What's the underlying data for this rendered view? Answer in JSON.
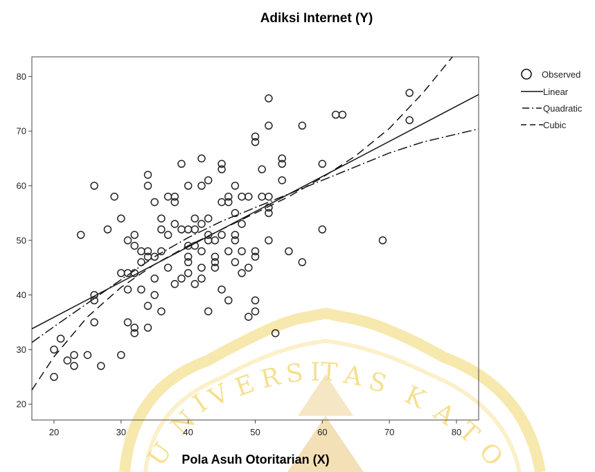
{
  "chart_data": {
    "type": "scatter",
    "title": "Adiksi Internet (Y)",
    "xlabel": "Pola Asuh Otoritarian (X)",
    "ylabel": "",
    "xlim": [
      16.7,
      83.3
    ],
    "ylim": [
      17.1,
      83.6
    ],
    "xticks": [
      20,
      30,
      40,
      50,
      60,
      70,
      80
    ],
    "yticks": [
      20,
      30,
      40,
      50,
      60,
      70,
      80
    ],
    "grid": false,
    "legend_position": "right",
    "legend": [
      "Observed",
      "Linear",
      "Quadratic",
      "Cubic"
    ],
    "observed": [
      [
        20,
        25
      ],
      [
        20,
        30
      ],
      [
        21,
        32
      ],
      [
        22,
        28
      ],
      [
        23,
        29
      ],
      [
        23,
        27
      ],
      [
        24,
        51
      ],
      [
        25,
        29
      ],
      [
        26,
        60
      ],
      [
        26,
        40
      ],
      [
        26,
        39
      ],
      [
        26,
        35
      ],
      [
        27,
        27
      ],
      [
        28,
        52
      ],
      [
        29,
        58
      ],
      [
        30,
        54
      ],
      [
        30,
        44
      ],
      [
        30,
        29
      ],
      [
        31,
        50
      ],
      [
        31,
        44
      ],
      [
        31,
        41
      ],
      [
        31,
        35
      ],
      [
        32,
        51
      ],
      [
        32,
        49
      ],
      [
        32,
        44
      ],
      [
        32,
        34
      ],
      [
        32,
        33
      ],
      [
        33,
        48
      ],
      [
        33,
        46
      ],
      [
        33,
        41
      ],
      [
        34,
        62
      ],
      [
        34,
        60
      ],
      [
        34,
        48
      ],
      [
        34,
        47
      ],
      [
        34,
        38
      ],
      [
        34,
        34
      ],
      [
        35,
        57
      ],
      [
        35,
        47
      ],
      [
        35,
        43
      ],
      [
        35,
        40
      ],
      [
        36,
        54
      ],
      [
        36,
        52
      ],
      [
        36,
        48
      ],
      [
        36,
        37
      ],
      [
        37,
        58
      ],
      [
        37,
        51
      ],
      [
        37,
        45
      ],
      [
        38,
        58
      ],
      [
        38,
        57
      ],
      [
        38,
        53
      ],
      [
        38,
        42
      ],
      [
        39,
        64
      ],
      [
        39,
        52
      ],
      [
        39,
        43
      ],
      [
        40,
        60
      ],
      [
        40,
        52
      ],
      [
        40,
        49
      ],
      [
        40,
        47
      ],
      [
        40,
        46
      ],
      [
        40,
        44
      ],
      [
        41,
        54
      ],
      [
        41,
        52
      ],
      [
        41,
        49
      ],
      [
        41,
        42
      ],
      [
        42,
        65
      ],
      [
        42,
        60
      ],
      [
        42,
        53
      ],
      [
        42,
        48
      ],
      [
        42,
        45
      ],
      [
        42,
        43
      ],
      [
        43,
        61
      ],
      [
        43,
        54
      ],
      [
        43,
        51
      ],
      [
        43,
        50
      ],
      [
        43,
        37
      ],
      [
        44,
        50
      ],
      [
        44,
        47
      ],
      [
        44,
        46
      ],
      [
        44,
        45
      ],
      [
        45,
        64
      ],
      [
        45,
        63
      ],
      [
        45,
        57
      ],
      [
        45,
        51
      ],
      [
        45,
        41
      ],
      [
        46,
        58
      ],
      [
        46,
        57
      ],
      [
        46,
        48
      ],
      [
        46,
        39
      ],
      [
        47,
        60
      ],
      [
        47,
        55
      ],
      [
        47,
        51
      ],
      [
        47,
        50
      ],
      [
        47,
        46
      ],
      [
        48,
        58
      ],
      [
        48,
        53
      ],
      [
        48,
        48
      ],
      [
        48,
        44
      ],
      [
        49,
        58
      ],
      [
        49,
        45
      ],
      [
        49,
        36
      ],
      [
        50,
        69
      ],
      [
        50,
        68
      ],
      [
        50,
        48
      ],
      [
        50,
        47
      ],
      [
        50,
        39
      ],
      [
        50,
        37
      ],
      [
        51,
        63
      ],
      [
        51,
        58
      ],
      [
        52,
        76
      ],
      [
        52,
        71
      ],
      [
        52,
        58
      ],
      [
        52,
        56
      ],
      [
        52,
        55
      ],
      [
        52,
        50
      ],
      [
        53,
        33
      ],
      [
        54,
        65
      ],
      [
        54,
        64
      ],
      [
        54,
        61
      ],
      [
        55,
        48
      ],
      [
        57,
        71
      ],
      [
        57,
        46
      ],
      [
        60,
        64
      ],
      [
        60,
        52
      ],
      [
        62,
        73
      ],
      [
        63,
        73
      ],
      [
        69,
        50
      ],
      [
        73,
        77
      ],
      [
        73,
        72
      ]
    ],
    "fits": {
      "linear": [
        [
          16.7,
          33.8
        ],
        [
          83.3,
          76.7
        ]
      ],
      "quadratic": [
        [
          16.7,
          31.3
        ],
        [
          20,
          34.2
        ],
        [
          25,
          38.5
        ],
        [
          30,
          42.8
        ],
        [
          35,
          47
        ],
        [
          40,
          50.5
        ],
        [
          45,
          53.5
        ],
        [
          50,
          56
        ],
        [
          55,
          58.5
        ],
        [
          60,
          61
        ],
        [
          65,
          63.5
        ],
        [
          70,
          66
        ],
        [
          75,
          68
        ],
        [
          83.3,
          70.4
        ]
      ],
      "cubic": [
        [
          16.7,
          22.6
        ],
        [
          20,
          28.7
        ],
        [
          25,
          36
        ],
        [
          30,
          41.4
        ],
        [
          35,
          45.6
        ],
        [
          40,
          49
        ],
        [
          45,
          52
        ],
        [
          50,
          55
        ],
        [
          55,
          58
        ],
        [
          60,
          61.5
        ],
        [
          65,
          65.5
        ],
        [
          70,
          70.5
        ],
        [
          75,
          77
        ],
        [
          80,
          84.5
        ]
      ]
    },
    "colors": {
      "axes": "#444444",
      "markers": "#222222",
      "lines": "#111111"
    },
    "watermark_text": "UNIVERSITAS KATOLIK"
  }
}
